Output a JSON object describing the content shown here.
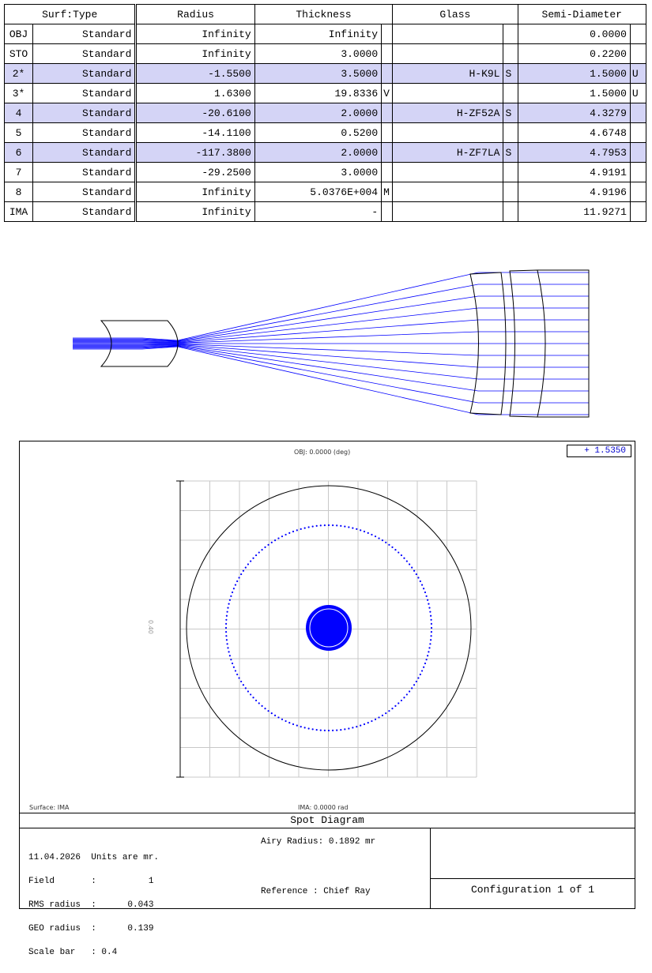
{
  "lens_data_editor": {
    "columns": [
      "Surf:Type",
      "Radius",
      "Thickness",
      "Glass",
      "Semi-Diameter"
    ],
    "rows": [
      {
        "surf": "OBJ",
        "type": "Standard",
        "radius": "Infinity",
        "thickness": "Infinity",
        "thickness_solve": "",
        "glass": "",
        "glass_solve": "",
        "semi": "0.0000",
        "semi_solve": "",
        "selected": false
      },
      {
        "surf": "STO",
        "type": "Standard",
        "radius": "Infinity",
        "thickness": "3.0000",
        "thickness_solve": "",
        "glass": "",
        "glass_solve": "",
        "semi": "0.2200",
        "semi_solve": "",
        "selected": false
      },
      {
        "surf": "2*",
        "type": "Standard",
        "radius": "-1.5500",
        "thickness": "3.5000",
        "thickness_solve": "",
        "glass": "H-K9L",
        "glass_solve": "S",
        "semi": "1.5000",
        "semi_solve": "U",
        "selected": true
      },
      {
        "surf": "3*",
        "type": "Standard",
        "radius": "1.6300",
        "thickness": "19.8336",
        "thickness_solve": "V",
        "glass": "",
        "glass_solve": "",
        "semi": "1.5000",
        "semi_solve": "U",
        "selected": false
      },
      {
        "surf": "4",
        "type": "Standard",
        "radius": "-20.6100",
        "thickness": "2.0000",
        "thickness_solve": "",
        "glass": "H-ZF52A",
        "glass_solve": "S",
        "semi": "4.3279",
        "semi_solve": "",
        "selected": true
      },
      {
        "surf": "5",
        "type": "Standard",
        "radius": "-14.1100",
        "thickness": "0.5200",
        "thickness_solve": "",
        "glass": "",
        "glass_solve": "",
        "semi": "4.6748",
        "semi_solve": "",
        "selected": false
      },
      {
        "surf": "6",
        "type": "Standard",
        "radius": "-117.3800",
        "thickness": "2.0000",
        "thickness_solve": "",
        "glass": "H-ZF7LA",
        "glass_solve": "S",
        "semi": "4.7953",
        "semi_solve": "",
        "selected": true
      },
      {
        "surf": "7",
        "type": "Standard",
        "radius": "-29.2500",
        "thickness": "3.0000",
        "thickness_solve": "",
        "glass": "",
        "glass_solve": "",
        "semi": "4.9191",
        "semi_solve": "",
        "selected": false
      },
      {
        "surf": "8",
        "type": "Standard",
        "radius": "Infinity",
        "thickness": "5.0376E+004",
        "thickness_solve": "M",
        "glass": "",
        "glass_solve": "",
        "semi": "4.9196",
        "semi_solve": "",
        "selected": false
      },
      {
        "surf": "IMA",
        "type": "Standard",
        "radius": "Infinity",
        "thickness": "-",
        "thickness_solve": "",
        "glass": "",
        "glass_solve": "",
        "semi": "11.9271",
        "semi_solve": "",
        "selected": false
      }
    ]
  },
  "spot_diagram": {
    "object_label": "OBJ: 0.0000 (deg)",
    "legend_value": "+ 1.5350",
    "scale_label": "0.40",
    "surface_label": "Surface: IMA",
    "image_label": "IMA: 0.0000 rad",
    "title": "Spot Diagram",
    "info_lines": [
      "11.04.2026  Units are mr.",
      "Field       :          1",
      "RMS radius  :      0.043",
      "GEO radius  :      0.139",
      "Scale bar   : 0.4"
    ],
    "airy_radius": "Airy Radius: 0.1892 mr",
    "reference": "Reference  : Chief Ray",
    "configuration": "Configuration 1 of 1",
    "colors": {
      "rays": "#0000ff",
      "grid": "#c8c8c8",
      "airy": "#000000"
    }
  },
  "layout_plot": {
    "ray_color": "#0000ff"
  }
}
